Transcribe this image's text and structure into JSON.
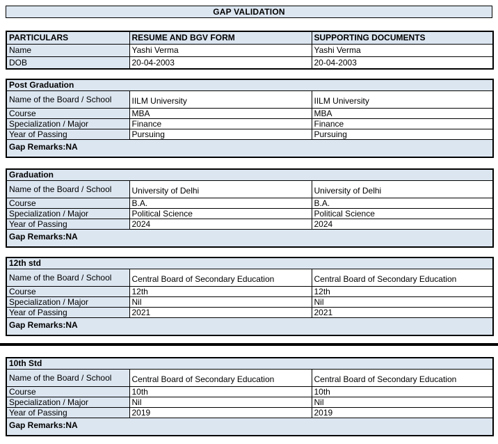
{
  "title": "GAP VALIDATION",
  "colors": {
    "cell_highlight": "#dce6f1",
    "border": "#000000",
    "background": "#ffffff"
  },
  "particulars_table": {
    "headers": [
      "PARTICULARS",
      "RESUME AND BGV FORM",
      "SUPPORTING DOCUMENTS"
    ],
    "rows": [
      {
        "label": "Name",
        "resume": "Yashi Verma",
        "supporting": "Yashi Verma"
      },
      {
        "label": "DOB",
        "resume": "20-04-2003",
        "supporting": "20-04-2003"
      }
    ]
  },
  "sections": [
    {
      "title": "Post Graduation",
      "rows": [
        {
          "label": "Name of the Board / School",
          "resume": "IILM University",
          "supporting": "IILM University"
        },
        {
          "label": "Course",
          "resume": "MBA",
          "supporting": "MBA"
        },
        {
          "label": "Specialization / Major",
          "resume": "Finance",
          "supporting": "Finance"
        },
        {
          "label": "Year of Passing",
          "resume": "Pursuing",
          "supporting": "Pursuing"
        }
      ],
      "gap_remarks": "Gap Remarks:NA"
    },
    {
      "title": "Graduation",
      "rows": [
        {
          "label": "Name of the Board / School",
          "resume": "University of Delhi",
          "supporting": "University of Delhi"
        },
        {
          "label": "Course",
          "resume": "B.A.",
          "supporting": "B.A."
        },
        {
          "label": "Specialization / Major",
          "resume": "Political Science",
          "supporting": "Political Science"
        },
        {
          "label": "Year of Passing",
          "resume": "2024",
          "supporting": "2024"
        }
      ],
      "gap_remarks": "Gap Remarks:NA"
    },
    {
      "title": "12th std",
      "rows": [
        {
          "label": "Name of the Board / School",
          "resume": "Central Board of Secondary Education",
          "supporting": "Central Board of Secondary Education"
        },
        {
          "label": "Course",
          "resume": "12th",
          "supporting": "12th"
        },
        {
          "label": "Specialization / Major",
          "resume": "Nil",
          "supporting": "Nil"
        },
        {
          "label": "Year of Passing",
          "resume": "2021",
          "supporting": "2021"
        }
      ],
      "gap_remarks": "Gap Remarks:NA"
    },
    {
      "title": "10th Std",
      "rows": [
        {
          "label": "Name of the Board / School",
          "resume": "Central Board of Secondary Education",
          "supporting": "Central Board of Secondary Education"
        },
        {
          "label": "Course",
          "resume": "10th",
          "supporting": "10th"
        },
        {
          "label": "Specialization / Major",
          "resume": "Nil",
          "supporting": "Nil"
        },
        {
          "label": "Year of Passing",
          "resume": "2019",
          "supporting": "2019"
        }
      ],
      "gap_remarks": "Gap Remarks:NA"
    }
  ]
}
